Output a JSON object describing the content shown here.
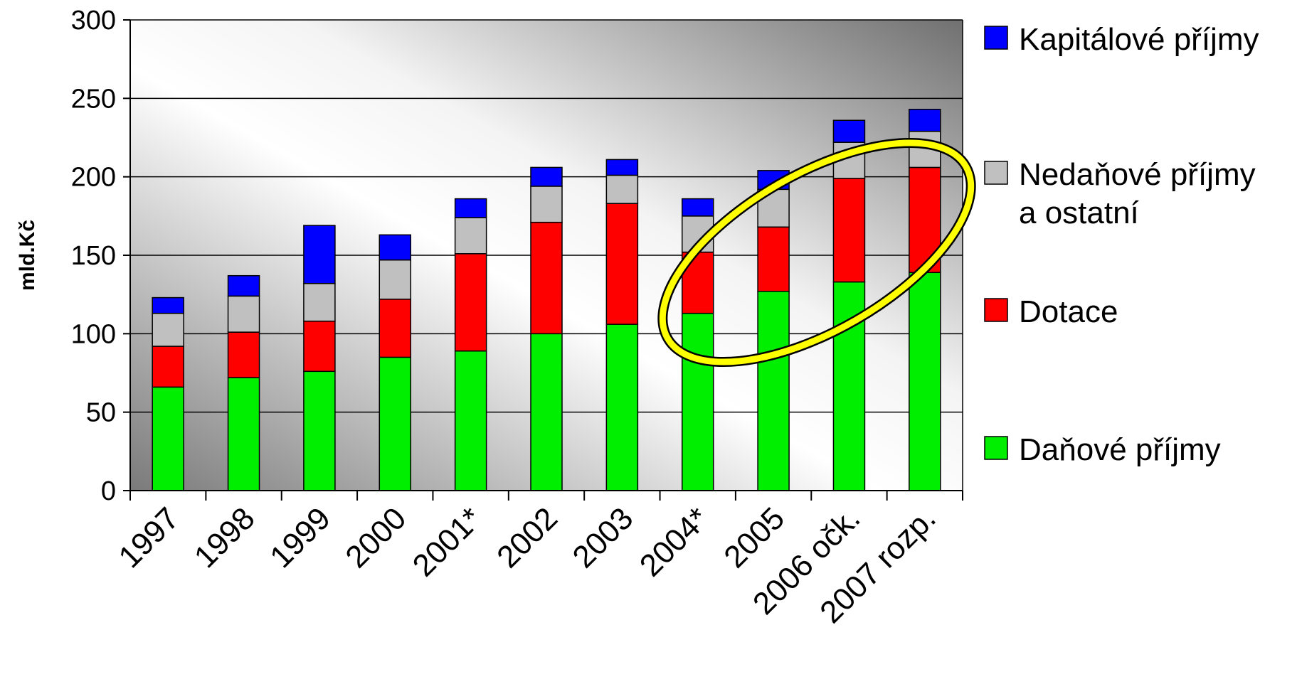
{
  "chart_data": {
    "type": "bar",
    "stacked": true,
    "categories": [
      "1997",
      "1998",
      "1999",
      "2000",
      "2001*",
      "2002",
      "2003",
      "2004*",
      "2005",
      "2006 očk.",
      "2007 rozp."
    ],
    "series": [
      {
        "name": "Daňové příjmy",
        "color": "#00ee00",
        "values": [
          66,
          72,
          76,
          85,
          89,
          100,
          106,
          113,
          127,
          133,
          139
        ]
      },
      {
        "name": "Dotace",
        "color": "#ff0000",
        "values": [
          26,
          29,
          32,
          37,
          62,
          71,
          77,
          39,
          41,
          66,
          67
        ]
      },
      {
        "name": "Nedaňové příjmy a ostatní",
        "color": "#c0c0c0",
        "values": [
          21,
          23,
          24,
          25,
          23,
          23,
          18,
          23,
          24,
          23,
          23
        ]
      },
      {
        "name": "Kapitálové příjmy",
        "color": "#0000ff",
        "values": [
          10,
          13,
          37,
          16,
          12,
          12,
          10,
          11,
          12,
          14,
          14
        ]
      }
    ],
    "legend": {
      "placement": "right",
      "items": [
        {
          "lines": [
            "Kapitálové příjmy"
          ],
          "color": "#0000ff"
        },
        {
          "lines": [
            "Nedaňové příjmy",
            "a ostatní"
          ],
          "color": "#c0c0c0"
        },
        {
          "lines": [
            "Dotace"
          ],
          "color": "#ff0000"
        },
        {
          "lines": [
            "Daňové příjmy"
          ],
          "color": "#00ee00"
        }
      ]
    },
    "ylabel": "mld.Kč",
    "xlabel": "",
    "title": "",
    "ylim": [
      0,
      300
    ],
    "yticks": [
      0,
      50,
      100,
      150,
      200,
      250,
      300
    ],
    "grid": true,
    "annotation": {
      "type": "ellipse",
      "color": "#ffff00",
      "outline": "#000000",
      "highlights": [
        "2004*",
        "2005",
        "2006 očk.",
        "2007 rozp."
      ]
    }
  }
}
